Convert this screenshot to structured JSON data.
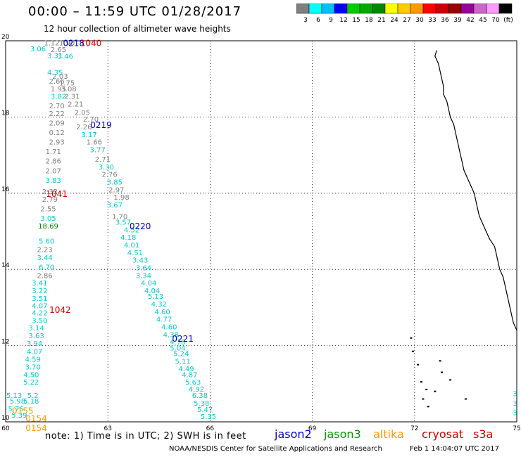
{
  "header": {
    "title": "00:00 – 11:59 UTC 01/28/2017",
    "subtitle": "12 hour collection of altimeter wave heights"
  },
  "colorbar": {
    "colors": [
      "#808080",
      "#00ffff",
      "#00bfff",
      "#0000ff",
      "#00cc00",
      "#00aa00",
      "#008800",
      "#ffff00",
      "#ffcc00",
      "#ff9900",
      "#ff0000",
      "#cc0000",
      "#990000",
      "#990099",
      "#cc66cc",
      "#ff99ff",
      "#000000"
    ],
    "labels": [
      "3",
      "6",
      "9",
      "12",
      "15",
      "18",
      "21",
      "24",
      "27",
      "30",
      "33",
      "36",
      "39",
      "42",
      "45",
      "70",
      "(ft)"
    ]
  },
  "axes": {
    "x_ticks": [
      "60",
      "63",
      "66",
      "69",
      "72",
      "75"
    ],
    "y_ticks": [
      "10",
      "12",
      "14",
      "16",
      "18",
      "20"
    ]
  },
  "chart_data": {
    "type": "scatter",
    "xlim": [
      60,
      75
    ],
    "ylim": [
      10,
      20
    ],
    "grid": true,
    "track_labels": [
      {
        "text": "0218",
        "x": 62.0,
        "y": 19.95,
        "color": "#0000cc"
      },
      {
        "text": "1040",
        "x": 62.5,
        "y": 19.95,
        "color": "#cc0000"
      },
      {
        "text": "0219",
        "x": 62.8,
        "y": 17.8,
        "color": "#0000cc"
      },
      {
        "text": "1041",
        "x": 61.5,
        "y": 16.0,
        "color": "#cc0000"
      },
      {
        "text": "0220",
        "x": 63.95,
        "y": 15.15,
        "color": "#0000cc"
      },
      {
        "text": "1042",
        "x": 61.6,
        "y": 12.95,
        "color": "#cc0000"
      },
      {
        "text": "0221",
        "x": 65.2,
        "y": 12.2,
        "color": "#0000cc"
      },
      {
        "text": "0155",
        "x": 60.5,
        "y": 10.3,
        "color": "#ff9900"
      },
      {
        "text": "0154",
        "x": 60.9,
        "y": 10.1,
        "color": "#ff9900"
      },
      {
        "text": "0154",
        "x": 60.9,
        "y": 9.85,
        "color": "#ff9900"
      }
    ],
    "values": [
      {
        "text": "1.12",
        "x": 61.35,
        "y": 19.95,
        "color": "#808080"
      },
      {
        "text": "1.90",
        "x": 61.8,
        "y": 19.95,
        "color": "#808080"
      },
      {
        "text": "3.06",
        "x": 60.95,
        "y": 19.8,
        "color": "#00cccc"
      },
      {
        "text": "2.65",
        "x": 61.55,
        "y": 19.78,
        "color": "#808080"
      },
      {
        "text": "3.31",
        "x": 61.45,
        "y": 19.62,
        "color": "#00cccc"
      },
      {
        "text": "3.46",
        "x": 61.75,
        "y": 19.6,
        "color": "#00cccc"
      },
      {
        "text": "4.35",
        "x": 61.45,
        "y": 19.18,
        "color": "#00cccc"
      },
      {
        "text": "2.03",
        "x": 61.6,
        "y": 19.08,
        "color": "#808080"
      },
      {
        "text": "2.66",
        "x": 61.5,
        "y": 18.95,
        "color": "#808080"
      },
      {
        "text": "1.75",
        "x": 61.8,
        "y": 18.9,
        "color": "#808080"
      },
      {
        "text": "1.95",
        "x": 61.55,
        "y": 18.75,
        "color": "#808080"
      },
      {
        "text": "3.08",
        "x": 61.85,
        "y": 18.75,
        "color": "#808080"
      },
      {
        "text": "3.82",
        "x": 61.55,
        "y": 18.55,
        "color": "#00cccc"
      },
      {
        "text": "2.31",
        "x": 61.95,
        "y": 18.55,
        "color": "#808080"
      },
      {
        "text": "2.70",
        "x": 61.5,
        "y": 18.3,
        "color": "#808080"
      },
      {
        "text": "2.21",
        "x": 62.05,
        "y": 18.35,
        "color": "#808080"
      },
      {
        "text": "2.22",
        "x": 61.5,
        "y": 18.1,
        "color": "#808080"
      },
      {
        "text": "2.05",
        "x": 62.25,
        "y": 18.13,
        "color": "#808080"
      },
      {
        "text": "2.70",
        "x": 62.5,
        "y": 17.95,
        "color": "#808080"
      },
      {
        "text": "2.09",
        "x": 61.5,
        "y": 17.85,
        "color": "#808080"
      },
      {
        "text": "2.26",
        "x": 62.3,
        "y": 17.75,
        "color": "#808080"
      },
      {
        "text": "0.12",
        "x": 61.5,
        "y": 17.6,
        "color": "#808080"
      },
      {
        "text": "3.17",
        "x": 62.45,
        "y": 17.55,
        "color": "#00cccc"
      },
      {
        "text": "2.93",
        "x": 61.5,
        "y": 17.35,
        "color": "#808080"
      },
      {
        "text": "1.66",
        "x": 62.6,
        "y": 17.35,
        "color": "#808080"
      },
      {
        "text": "1.71",
        "x": 61.4,
        "y": 17.1,
        "color": "#808080"
      },
      {
        "text": "3.77",
        "x": 62.7,
        "y": 17.15,
        "color": "#00cccc"
      },
      {
        "text": "2.86",
        "x": 61.4,
        "y": 16.85,
        "color": "#808080"
      },
      {
        "text": "2.71",
        "x": 62.85,
        "y": 16.9,
        "color": "#808080"
      },
      {
        "text": "2.07",
        "x": 61.4,
        "y": 16.6,
        "color": "#808080"
      },
      {
        "text": "3.30",
        "x": 62.95,
        "y": 16.7,
        "color": "#00cccc"
      },
      {
        "text": "3.83",
        "x": 61.4,
        "y": 16.35,
        "color": "#00cccc"
      },
      {
        "text": "2.76",
        "x": 63.05,
        "y": 16.5,
        "color": "#808080"
      },
      {
        "text": "3.85",
        "x": 63.2,
        "y": 16.3,
        "color": "#00cccc"
      },
      {
        "text": "2.32",
        "x": 61.3,
        "y": 16.05,
        "color": "#808080"
      },
      {
        "text": "2.97",
        "x": 63.25,
        "y": 16.1,
        "color": "#808080"
      },
      {
        "text": "2.79",
        "x": 61.3,
        "y": 15.85,
        "color": "#808080"
      },
      {
        "text": "1.98",
        "x": 63.4,
        "y": 15.9,
        "color": "#808080"
      },
      {
        "text": "2.55",
        "x": 61.25,
        "y": 15.6,
        "color": "#808080"
      },
      {
        "text": "3.67",
        "x": 63.2,
        "y": 15.7,
        "color": "#00cccc"
      },
      {
        "text": "3.05",
        "x": 61.25,
        "y": 15.35,
        "color": "#00cccc"
      },
      {
        "text": "1.70",
        "x": 63.35,
        "y": 15.4,
        "color": "#808080"
      },
      {
        "text": "18.69",
        "x": 61.25,
        "y": 15.15,
        "color": "#008800"
      },
      {
        "text": "3.57",
        "x": 63.45,
        "y": 15.25,
        "color": "#00cccc"
      },
      {
        "text": "4.52",
        "x": 63.7,
        "y": 15.05,
        "color": "#00cccc"
      },
      {
        "text": "4.18",
        "x": 63.6,
        "y": 14.85,
        "color": "#00cccc"
      },
      {
        "text": "5.60",
        "x": 61.2,
        "y": 14.75,
        "color": "#00cccc"
      },
      {
        "text": "4.01",
        "x": 63.7,
        "y": 14.65,
        "color": "#00cccc"
      },
      {
        "text": "2.23",
        "x": 61.15,
        "y": 14.53,
        "color": "#808080"
      },
      {
        "text": "4.51",
        "x": 63.8,
        "y": 14.45,
        "color": "#00cccc"
      },
      {
        "text": "3.44",
        "x": 61.15,
        "y": 14.32,
        "color": "#00cccc"
      },
      {
        "text": "3.43",
        "x": 63.95,
        "y": 14.25,
        "color": "#00cccc"
      },
      {
        "text": "6.70",
        "x": 61.2,
        "y": 14.07,
        "color": "#00cccc"
      },
      {
        "text": "3.64",
        "x": 64.05,
        "y": 14.05,
        "color": "#00cccc"
      },
      {
        "text": "2.86",
        "x": 61.15,
        "y": 13.85,
        "color": "#808080"
      },
      {
        "text": "3.34",
        "x": 64.05,
        "y": 13.85,
        "color": "#00cccc"
      },
      {
        "text": "3.41",
        "x": 61.0,
        "y": 13.65,
        "color": "#00cccc"
      },
      {
        "text": "4.04",
        "x": 64.2,
        "y": 13.65,
        "color": "#00cccc"
      },
      {
        "text": "3.22",
        "x": 61.0,
        "y": 13.45,
        "color": "#00cccc"
      },
      {
        "text": "4.04",
        "x": 64.3,
        "y": 13.45,
        "color": "#00cccc"
      },
      {
        "text": "3.51",
        "x": 61.0,
        "y": 13.25,
        "color": "#00cccc"
      },
      {
        "text": "5.13",
        "x": 64.4,
        "y": 13.3,
        "color": "#00cccc"
      },
      {
        "text": "4.07",
        "x": 61.0,
        "y": 13.05,
        "color": "#00cccc"
      },
      {
        "text": "4.32",
        "x": 64.5,
        "y": 13.1,
        "color": "#00cccc"
      },
      {
        "text": "4.22",
        "x": 61.0,
        "y": 12.87,
        "color": "#00cccc"
      },
      {
        "text": "4.60",
        "x": 64.6,
        "y": 12.9,
        "color": "#00cccc"
      },
      {
        "text": "3.50",
        "x": 61.0,
        "y": 12.67,
        "color": "#00cccc"
      },
      {
        "text": "4.77",
        "x": 64.65,
        "y": 12.7,
        "color": "#00cccc"
      },
      {
        "text": "3.14",
        "x": 60.9,
        "y": 12.47,
        "color": "#00cccc"
      },
      {
        "text": "4.60",
        "x": 64.8,
        "y": 12.5,
        "color": "#00cccc"
      },
      {
        "text": "3.63",
        "x": 60.9,
        "y": 12.27,
        "color": "#00cccc"
      },
      {
        "text": "4.38",
        "x": 64.85,
        "y": 12.3,
        "color": "#00cccc"
      },
      {
        "text": "3.94",
        "x": 60.85,
        "y": 12.07,
        "color": "#00cccc"
      },
      {
        "text": "4.78",
        "x": 65.05,
        "y": 12.1,
        "color": "#00cccc"
      },
      {
        "text": "5.04",
        "x": 65.05,
        "y": 11.95,
        "color": "#00cccc"
      },
      {
        "text": "4.07",
        "x": 60.85,
        "y": 11.85,
        "color": "#00cccc"
      },
      {
        "text": "5.24",
        "x": 65.15,
        "y": 11.8,
        "color": "#00cccc"
      },
      {
        "text": "4.59",
        "x": 60.8,
        "y": 11.65,
        "color": "#00cccc"
      },
      {
        "text": "5.11",
        "x": 65.2,
        "y": 11.6,
        "color": "#00cccc"
      },
      {
        "text": "3.70",
        "x": 60.8,
        "y": 11.45,
        "color": "#00cccc"
      },
      {
        "text": "4.49",
        "x": 65.3,
        "y": 11.4,
        "color": "#00cccc"
      },
      {
        "text": "4.50",
        "x": 60.75,
        "y": 11.25,
        "color": "#00cccc"
      },
      {
        "text": "4.87",
        "x": 65.4,
        "y": 11.25,
        "color": "#00cccc"
      },
      {
        "text": "5.22",
        "x": 60.75,
        "y": 11.05,
        "color": "#00cccc"
      },
      {
        "text": "5.63",
        "x": 65.5,
        "y": 11.05,
        "color": "#00cccc"
      },
      {
        "text": "4.92",
        "x": 65.6,
        "y": 10.87,
        "color": "#00cccc"
      },
      {
        "text": "5.13",
        "x": 60.25,
        "y": 10.7,
        "color": "#00cccc"
      },
      {
        "text": "5.2",
        "x": 60.8,
        "y": 10.7,
        "color": "#00cccc"
      },
      {
        "text": "6.38",
        "x": 65.7,
        "y": 10.7,
        "color": "#00cccc"
      },
      {
        "text": "5.98",
        "x": 60.35,
        "y": 10.55,
        "color": "#00cccc"
      },
      {
        "text": "5.18",
        "x": 60.75,
        "y": 10.55,
        "color": "#00cccc"
      },
      {
        "text": "5.38",
        "x": 65.75,
        "y": 10.5,
        "color": "#00cccc"
      },
      {
        "text": "5.76",
        "x": 60.3,
        "y": 10.35,
        "color": "#00cccc"
      },
      {
        "text": "5.47",
        "x": 65.85,
        "y": 10.33,
        "color": "#00cccc"
      },
      {
        "text": "5.39",
        "x": 60.4,
        "y": 10.18,
        "color": "#00cccc"
      },
      {
        "text": "5.35",
        "x": 65.95,
        "y": 10.15,
        "color": "#00cccc"
      },
      {
        "text": "3",
        "x": 74.95,
        "y": 10.75,
        "color": "#00cccc"
      },
      {
        "text": "3",
        "x": 74.95,
        "y": 10.5,
        "color": "#00cccc"
      },
      {
        "text": "3",
        "x": 74.95,
        "y": 10.25,
        "color": "#00cccc"
      }
    ]
  },
  "coastline": [
    [
      72.65,
      19.75
    ],
    [
      72.6,
      19.6
    ],
    [
      72.7,
      19.4
    ],
    [
      72.75,
      19.2
    ],
    [
      72.8,
      19.0
    ],
    [
      72.85,
      18.8
    ],
    [
      72.85,
      18.6
    ],
    [
      72.95,
      18.4
    ],
    [
      73.0,
      18.2
    ],
    [
      73.05,
      18.0
    ],
    [
      73.15,
      17.8
    ],
    [
      73.2,
      17.6
    ],
    [
      73.25,
      17.4
    ],
    [
      73.3,
      17.2
    ],
    [
      73.35,
      17.0
    ],
    [
      73.4,
      16.8
    ],
    [
      73.45,
      16.6
    ],
    [
      73.55,
      16.4
    ],
    [
      73.65,
      16.2
    ],
    [
      73.75,
      16.0
    ],
    [
      73.8,
      15.8
    ],
    [
      73.85,
      15.6
    ],
    [
      73.9,
      15.4
    ],
    [
      74.0,
      15.2
    ],
    [
      74.1,
      15.0
    ],
    [
      74.2,
      14.8
    ],
    [
      74.35,
      14.6
    ],
    [
      74.4,
      14.4
    ],
    [
      74.45,
      14.2
    ],
    [
      74.5,
      14.0
    ],
    [
      74.6,
      13.8
    ],
    [
      74.65,
      13.6
    ],
    [
      74.7,
      13.4
    ],
    [
      74.75,
      13.2
    ],
    [
      74.8,
      13.0
    ],
    [
      74.85,
      12.8
    ],
    [
      74.9,
      12.6
    ],
    [
      75.0,
      12.4
    ]
  ],
  "islands": [
    [
      71.9,
      12.2
    ],
    [
      71.95,
      11.85
    ],
    [
      72.1,
      11.5
    ],
    [
      72.75,
      11.6
    ],
    [
      72.8,
      11.3
    ],
    [
      72.2,
      11.05
    ],
    [
      72.35,
      10.85
    ],
    [
      73.05,
      11.1
    ],
    [
      72.6,
      10.8
    ],
    [
      72.25,
      10.6
    ],
    [
      72.4,
      10.4
    ],
    [
      73.5,
      10.6
    ]
  ],
  "footer": {
    "note": "note:  1) Time is in UTC;  2) SWH is in feet",
    "legend": [
      {
        "label": "jason2",
        "color": "#0000cc"
      },
      {
        "label": "jason3",
        "color": "#009900"
      },
      {
        "label": "altika",
        "color": "#ff9900"
      },
      {
        "label": "cryosat",
        "color": "#cc0000"
      },
      {
        "label": "s3a",
        "color": "#cc0000"
      }
    ],
    "credit": "NOAA/NESDIS Center for Satellite Applications and Research",
    "timestamp": "Feb  1 14:04:07 UTC 2017"
  }
}
